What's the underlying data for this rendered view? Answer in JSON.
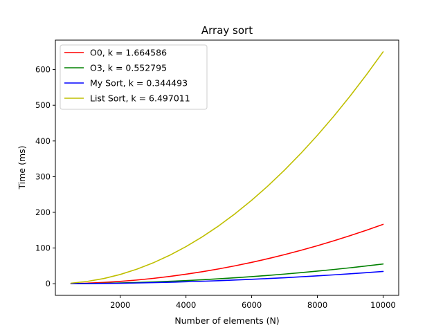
{
  "chart_data": {
    "type": "line",
    "title": "Array sort",
    "xlabel": "Number of elements (N)",
    "ylabel": "Time (ms)",
    "xlim": [
      25,
      10475
    ],
    "ylim": [
      -32.5,
      682.5
    ],
    "xticks": [
      2000,
      4000,
      6000,
      8000,
      10000
    ],
    "yticks": [
      0,
      100,
      200,
      300,
      400,
      500,
      600
    ],
    "legend_position": "top-left",
    "grid": false,
    "x": [
      500,
      1000,
      1500,
      2000,
      2500,
      3000,
      3500,
      4000,
      4500,
      5000,
      5500,
      6000,
      6500,
      7000,
      7500,
      8000,
      8500,
      9000,
      9500,
      10000
    ],
    "series": [
      {
        "name": "O0, k = 1.664586",
        "color": "#ff0000",
        "values": [
          0.42,
          1.66,
          3.75,
          6.66,
          10.4,
          14.98,
          20.39,
          26.63,
          33.71,
          41.61,
          50.35,
          59.93,
          70.33,
          81.56,
          93.63,
          106.53,
          120.26,
          134.83,
          150.23,
          166.46
        ]
      },
      {
        "name": "O3, k = 0.552795",
        "color": "#008000",
        "values": [
          0.14,
          0.55,
          1.24,
          2.21,
          3.45,
          4.98,
          6.77,
          8.84,
          11.19,
          13.82,
          16.72,
          19.9,
          23.36,
          27.09,
          31.1,
          35.38,
          39.94,
          44.78,
          49.89,
          55.28
        ]
      },
      {
        "name": "My Sort, k = 0.344493",
        "color": "#0000ff",
        "values": [
          0.09,
          0.34,
          0.78,
          1.38,
          2.15,
          3.1,
          4.22,
          5.51,
          6.98,
          8.61,
          10.42,
          12.4,
          14.55,
          16.88,
          19.38,
          22.05,
          24.89,
          27.9,
          31.09,
          34.45
        ]
      },
      {
        "name": "List Sort, k = 6.497011",
        "color": "#bfbf00",
        "values": [
          1.62,
          6.5,
          14.62,
          25.99,
          40.61,
          58.47,
          79.59,
          103.95,
          131.56,
          162.43,
          196.54,
          233.89,
          274.5,
          318.35,
          365.46,
          415.81,
          469.41,
          526.26,
          586.36,
          649.7
        ]
      }
    ]
  }
}
